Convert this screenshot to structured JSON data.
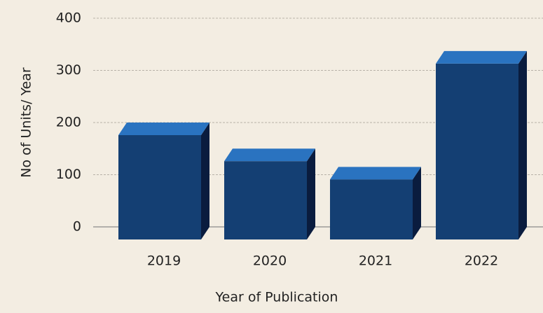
{
  "chart_data": {
    "type": "bar3d",
    "x_label": "Year of Publication",
    "y_label": "No of Units/ Year",
    "categories": [
      "2019",
      "2020",
      "2021",
      "2022"
    ],
    "values": [
      200,
      150,
      115,
      337
    ],
    "colors": {
      "front": "#143f73",
      "top": "#2a73c0",
      "side": "#0a1c3e"
    },
    "ylim": [
      0,
      400
    ],
    "yticks": [
      0,
      100,
      200,
      300,
      400
    ],
    "grid": true
  }
}
